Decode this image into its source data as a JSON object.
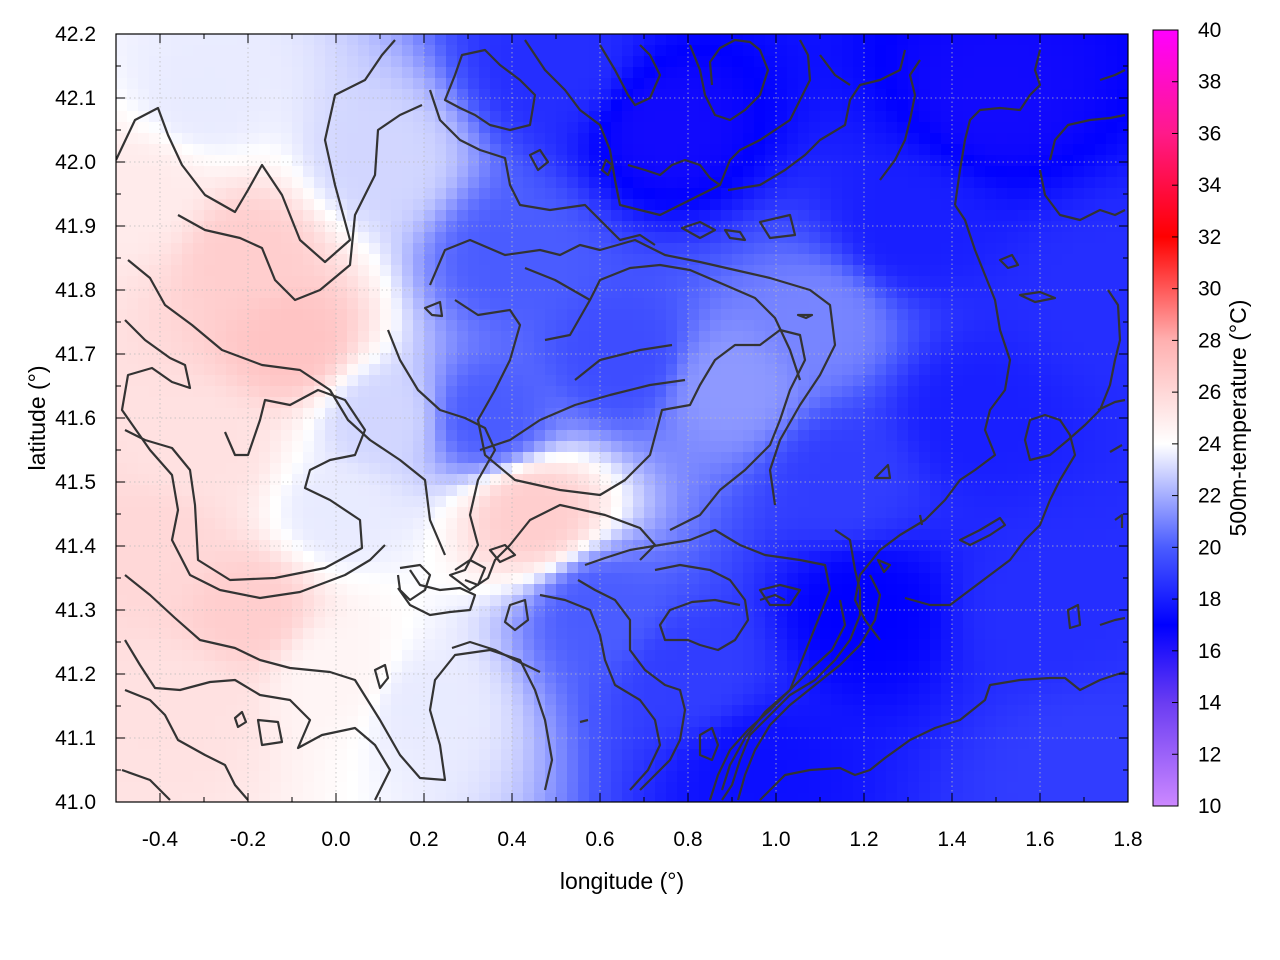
{
  "chart_data": {
    "type": "heatmap",
    "xlabel": "longitude (°)",
    "ylabel": "latitude (°)",
    "colorbar_label": "500m-temperature (°C)",
    "xlim": [
      -0.5,
      1.8
    ],
    "ylim": [
      41.0,
      42.2
    ],
    "x_ticks": [
      -0.4,
      -0.2,
      0.0,
      0.2,
      0.4,
      0.6,
      0.8,
      1.0,
      1.2,
      1.4,
      1.6,
      1.8
    ],
    "x_tick_labels": [
      "-0.4",
      "-0.2",
      "0.0",
      "0.2",
      "0.4",
      "0.6",
      "0.8",
      "1.0",
      "1.2",
      "1.4",
      "1.6",
      "1.8"
    ],
    "y_ticks": [
      41.0,
      41.1,
      41.2,
      41.3,
      41.4,
      41.5,
      41.6,
      41.7,
      41.8,
      41.9,
      42.0,
      42.1,
      42.2
    ],
    "y_tick_labels": [
      "41.0",
      "41.1",
      "41.2",
      "41.3",
      "41.4",
      "41.5",
      "41.6",
      "41.7",
      "41.8",
      "41.9",
      "42.0",
      "42.1",
      "42.2"
    ],
    "colorbar_range": [
      10,
      40
    ],
    "colorbar_ticks": [
      10,
      12,
      14,
      16,
      18,
      20,
      22,
      24,
      26,
      28,
      30,
      32,
      34,
      36,
      38,
      40
    ],
    "colorbar_tick_labels": [
      "10",
      "12",
      "14",
      "16",
      "18",
      "20",
      "22",
      "24",
      "26",
      "28",
      "30",
      "32",
      "34",
      "36",
      "38",
      "40"
    ],
    "colormap": [
      {
        "t": 10,
        "color": "#cc88ff"
      },
      {
        "t": 14,
        "color": "#6a3cf2"
      },
      {
        "t": 17,
        "color": "#0000ff"
      },
      {
        "t": 20,
        "color": "#4a5cff"
      },
      {
        "t": 24,
        "color": "#ffffff"
      },
      {
        "t": 28,
        "color": "#ffb0b0"
      },
      {
        "t": 32,
        "color": "#ff0000"
      },
      {
        "t": 36,
        "color": "#ff1a8a"
      },
      {
        "t": 40,
        "color": "#ff00ff"
      }
    ],
    "grid": true,
    "field_samples": [
      {
        "lon": -0.45,
        "lat": 41.95,
        "t": 25.0
      },
      {
        "lon": -0.3,
        "lat": 42.1,
        "t": 23.5
      },
      {
        "lon": -0.2,
        "lat": 41.85,
        "t": 26.5
      },
      {
        "lon": -0.1,
        "lat": 41.72,
        "t": 27.0
      },
      {
        "lon": -0.3,
        "lat": 41.55,
        "t": 25.5
      },
      {
        "lon": -0.4,
        "lat": 41.4,
        "t": 26.0
      },
      {
        "lon": -0.2,
        "lat": 41.3,
        "t": 26.5
      },
      {
        "lon": -0.35,
        "lat": 41.15,
        "t": 25.5
      },
      {
        "lon": 0.0,
        "lat": 41.45,
        "t": 23.5
      },
      {
        "lon": 0.1,
        "lat": 41.6,
        "t": 23.0
      },
      {
        "lon": 0.1,
        "lat": 42.0,
        "t": 23.0
      },
      {
        "lon": 0.0,
        "lat": 41.2,
        "t": 24.5
      },
      {
        "lon": 0.2,
        "lat": 41.15,
        "t": 23.5
      },
      {
        "lon": 0.45,
        "lat": 41.45,
        "t": 26.5
      },
      {
        "lon": 0.35,
        "lat": 41.6,
        "t": 20.0
      },
      {
        "lon": 0.4,
        "lat": 41.85,
        "t": 20.0
      },
      {
        "lon": 0.5,
        "lat": 42.15,
        "t": 18.5
      },
      {
        "lon": 0.75,
        "lat": 42.05,
        "t": 16.5
      },
      {
        "lon": 0.65,
        "lat": 41.7,
        "t": 19.5
      },
      {
        "lon": 0.9,
        "lat": 41.65,
        "t": 21.5
      },
      {
        "lon": 1.1,
        "lat": 41.75,
        "t": 21.0
      },
      {
        "lon": 0.6,
        "lat": 41.3,
        "t": 20.0
      },
      {
        "lon": 0.8,
        "lat": 41.2,
        "t": 19.0
      },
      {
        "lon": 0.95,
        "lat": 41.05,
        "t": 17.5
      },
      {
        "lon": 1.2,
        "lat": 41.3,
        "t": 17.0
      },
      {
        "lon": 1.15,
        "lat": 41.5,
        "t": 19.0
      },
      {
        "lon": 1.3,
        "lat": 41.9,
        "t": 18.0
      },
      {
        "lon": 1.5,
        "lat": 42.1,
        "t": 16.5
      },
      {
        "lon": 1.45,
        "lat": 41.6,
        "t": 18.0
      },
      {
        "lon": 1.6,
        "lat": 41.3,
        "t": 18.5
      },
      {
        "lon": 1.7,
        "lat": 41.05,
        "t": 19.0
      },
      {
        "lon": 1.75,
        "lat": 41.8,
        "t": 18.5
      }
    ]
  }
}
